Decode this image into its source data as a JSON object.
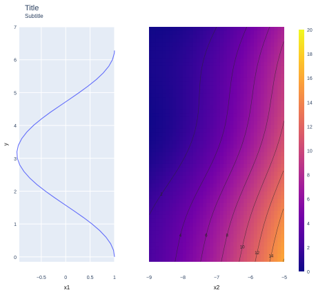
{
  "figure": {
    "title": "Title",
    "subtitle": "Subtitle"
  },
  "chart_data": [
    {
      "type": "line",
      "xlabel": "x1",
      "ylabel": "y",
      "xlim": [
        -0.95,
        1.0
      ],
      "ylim": [
        -0.15,
        7.0
      ],
      "x_ticks": [
        -0.5,
        0,
        0.5,
        1
      ],
      "x_tick_labels": [
        "−0.5",
        "0",
        "0.5",
        "1"
      ],
      "y_ticks": [
        0,
        1,
        2,
        3,
        4,
        5,
        6,
        7
      ],
      "y_tick_labels": [
        "0",
        "1",
        "2",
        "3",
        "4",
        "5",
        "6",
        "7"
      ],
      "grid": true,
      "background": "#e5ecf6",
      "line_color": "#636efa",
      "series": [
        {
          "x": [
            1.0,
            0.98,
            0.921,
            0.825,
            0.697,
            0.541,
            0.362,
            0.169,
            -0.029,
            -0.227,
            -0.416,
            -0.589,
            -0.737,
            -0.856,
            -0.942,
            -0.99,
            -0.999,
            -0.969,
            -0.9,
            -0.796,
            -0.66,
            -0.497,
            -0.315,
            -0.117,
            0.081,
            0.276,
            0.461,
            0.629,
            0.771,
            0.882,
            0.958,
            0.996,
            0.999
          ],
          "y": [
            0.0,
            0.2,
            0.4,
            0.6,
            0.8,
            1.0,
            1.2,
            1.4,
            1.6,
            1.8,
            2.0,
            2.2,
            2.4,
            2.6,
            2.8,
            3.0,
            3.2,
            3.4,
            3.6,
            3.8,
            4.0,
            4.2,
            4.4,
            4.6,
            4.8,
            5.0,
            5.2,
            5.4,
            5.6,
            5.8,
            6.0,
            6.2,
            6.28
          ]
        }
      ]
    },
    {
      "type": "heatmap",
      "xlabel": "x2",
      "xlim": [
        -9,
        -5
      ],
      "ylim": [
        -0.15,
        7.0
      ],
      "x_ticks": [
        -9,
        -8,
        -7,
        -6,
        -5
      ],
      "x_tick_labels": [
        "−9",
        "−8",
        "−7",
        "−6",
        "−5"
      ],
      "contour_labels": [
        "2",
        "4",
        "6",
        "8",
        "10",
        "12",
        "14",
        "16"
      ],
      "colorbar": {
        "range": [
          0,
          20
        ],
        "ticks": [
          "0",
          "2",
          "4",
          "6",
          "8",
          "10",
          "12",
          "14",
          "16",
          "18",
          "20"
        ],
        "colorscale": [
          "#0d0887",
          "#46039f",
          "#7201a8",
          "#9c179e",
          "#bd3786",
          "#d8576b",
          "#ed7953",
          "#fb9f3a",
          "#fdca26",
          "#f0f921"
        ]
      }
    }
  ]
}
